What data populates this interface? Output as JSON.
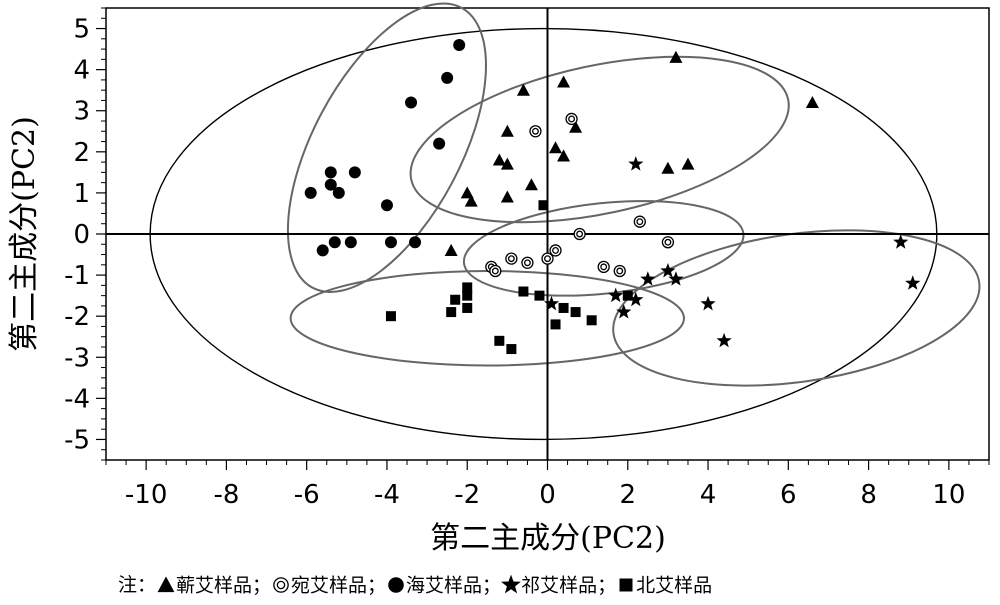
{
  "chart_data": {
    "type": "scatter",
    "xlabel": "第二主成分(PC2)",
    "ylabel": "第二主成分(PC2)",
    "xlim": [
      -11,
      11
    ],
    "ylim": [
      -5.5,
      5.5
    ],
    "xticks": [
      -10,
      -8,
      -6,
      -4,
      -2,
      0,
      2,
      4,
      6,
      8,
      10
    ],
    "yticks": [
      -5,
      -4,
      -3,
      -2,
      -1,
      0,
      1,
      2,
      3,
      4,
      5
    ],
    "grid": false,
    "colors": {
      "marker": "#000000",
      "axis": "#000000",
      "group_ellipse": "#666666"
    },
    "confidence_ellipse": {
      "cx": -0.1,
      "cy": 0,
      "rx": 9.8,
      "ry": 5.0
    },
    "series": [
      {
        "name": "蕲艾样品",
        "marker": "triangle",
        "points": [
          [
            3.2,
            4.3
          ],
          [
            6.6,
            3.2
          ],
          [
            -0.6,
            3.5
          ],
          [
            0.4,
            3.7
          ],
          [
            -1.0,
            2.5
          ],
          [
            0.7,
            2.6
          ],
          [
            -1.2,
            1.8
          ],
          [
            -1.0,
            1.7
          ],
          [
            0.2,
            2.1
          ],
          [
            0.4,
            1.9
          ],
          [
            3.5,
            1.7
          ],
          [
            3.0,
            1.6
          ],
          [
            -2.0,
            1.0
          ],
          [
            -1.9,
            0.8
          ],
          [
            -1.0,
            0.9
          ],
          [
            -0.4,
            1.2
          ],
          [
            -2.4,
            -0.4
          ]
        ],
        "ellipse": {
          "cx": 1.3,
          "cy": 2.3,
          "rx": 4.8,
          "ry": 1.8,
          "angle": -12
        }
      },
      {
        "name": "宛艾样品",
        "marker": "double-circle",
        "points": [
          [
            -0.3,
            2.5
          ],
          [
            0.6,
            2.8
          ],
          [
            2.3,
            0.3
          ],
          [
            0.8,
            0.0
          ],
          [
            3.0,
            -0.2
          ],
          [
            0.2,
            -0.4
          ],
          [
            0.0,
            -0.6
          ],
          [
            -0.9,
            -0.6
          ],
          [
            -0.5,
            -0.7
          ],
          [
            -1.4,
            -0.8
          ],
          [
            -1.3,
            -0.9
          ],
          [
            1.4,
            -0.8
          ],
          [
            1.8,
            -0.9
          ]
        ],
        "ellipse": {
          "cx": 1.4,
          "cy": -0.35,
          "rx": 3.5,
          "ry": 1.1,
          "angle": -6
        }
      },
      {
        "name": "海艾样品",
        "marker": "circle",
        "points": [
          [
            -2.2,
            4.6
          ],
          [
            -2.5,
            3.8
          ],
          [
            -3.4,
            3.2
          ],
          [
            -2.7,
            2.2
          ],
          [
            -5.4,
            1.5
          ],
          [
            -4.8,
            1.5
          ],
          [
            -5.4,
            1.2
          ],
          [
            -5.2,
            1.0
          ],
          [
            -5.9,
            1.0
          ],
          [
            -4.0,
            0.7
          ],
          [
            -5.3,
            -0.2
          ],
          [
            -4.9,
            -0.2
          ],
          [
            -3.9,
            -0.2
          ],
          [
            -3.3,
            -0.2
          ],
          [
            -5.6,
            -0.4
          ]
        ],
        "ellipse": {
          "cx": -4.0,
          "cy": 2.1,
          "rx": 3.95,
          "ry": 1.8,
          "angle": -62
        }
      },
      {
        "name": "祁艾样品",
        "marker": "star",
        "points": [
          [
            2.2,
            1.7
          ],
          [
            8.8,
            -0.2
          ],
          [
            9.1,
            -1.2
          ],
          [
            3.0,
            -0.9
          ],
          [
            3.2,
            -1.1
          ],
          [
            2.5,
            -1.1
          ],
          [
            1.7,
            -1.5
          ],
          [
            2.2,
            -1.6
          ],
          [
            1.9,
            -1.9
          ],
          [
            4.0,
            -1.7
          ],
          [
            4.4,
            -2.6
          ],
          [
            0.1,
            -1.7
          ]
        ],
        "ellipse": {
          "cx": 6.2,
          "cy": -1.8,
          "rx": 4.6,
          "ry": 1.8,
          "angle": -8
        }
      },
      {
        "name": "北艾样品",
        "marker": "square",
        "points": [
          [
            -0.1,
            0.7
          ],
          [
            -2.0,
            -1.3
          ],
          [
            -2.0,
            -1.5
          ],
          [
            -2.3,
            -1.6
          ],
          [
            -2.0,
            -1.8
          ],
          [
            -2.4,
            -1.9
          ],
          [
            -3.9,
            -2.0
          ],
          [
            -0.6,
            -1.4
          ],
          [
            -0.2,
            -1.5
          ],
          [
            0.4,
            -1.8
          ],
          [
            0.7,
            -1.9
          ],
          [
            0.2,
            -2.2
          ],
          [
            1.1,
            -2.1
          ],
          [
            -1.2,
            -2.6
          ],
          [
            -0.9,
            -2.8
          ],
          [
            2.0,
            -1.5
          ]
        ],
        "ellipse": {
          "cx": -1.5,
          "cy": -2.05,
          "rx": 4.9,
          "ry": 1.15,
          "angle": 0
        }
      }
    ]
  },
  "legend": {
    "prefix": "注：",
    "items": [
      {
        "label": "蕲艾样品；",
        "marker": "triangle"
      },
      {
        "label": "宛艾样品；",
        "marker": "double-circle"
      },
      {
        "label": "海艾样品；",
        "marker": "circle"
      },
      {
        "label": "祁艾样品；",
        "marker": "star"
      },
      {
        "label": "北艾样品",
        "marker": "square"
      }
    ]
  }
}
